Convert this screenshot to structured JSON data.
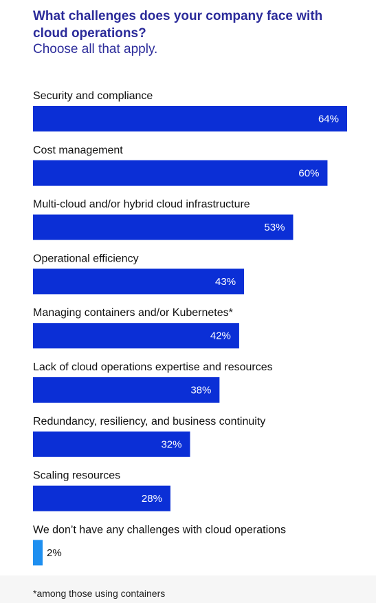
{
  "chart_data": {
    "type": "bar",
    "orientation": "horizontal",
    "title": "What challenges does your company face with cloud operations?",
    "subtitle": "Choose all that apply.",
    "categories": [
      "Security and compliance",
      "Cost management",
      "Multi-cloud and/or hybrid cloud infrastructure",
      "Operational efficiency",
      "Managing containers and/or Kubernetes*",
      "Lack of cloud operations expertise and resources",
      "Redundancy, resiliency, and business continuity",
      "Scaling resources",
      "We don’t have any challenges with cloud operations"
    ],
    "values": [
      64,
      60,
      53,
      43,
      42,
      38,
      32,
      28,
      2
    ],
    "value_labels": [
      "64%",
      "60%",
      "53%",
      "43%",
      "42%",
      "38%",
      "32%",
      "28%",
      "2%"
    ],
    "unit": "%",
    "xlim": [
      0,
      64
    ],
    "grid": false,
    "legend": "none",
    "colors": {
      "bar": "#0b2fd6",
      "bar_highlight": "#1e8ff0",
      "title": "#2b2b9a"
    }
  },
  "footnote": "*among those using containers"
}
